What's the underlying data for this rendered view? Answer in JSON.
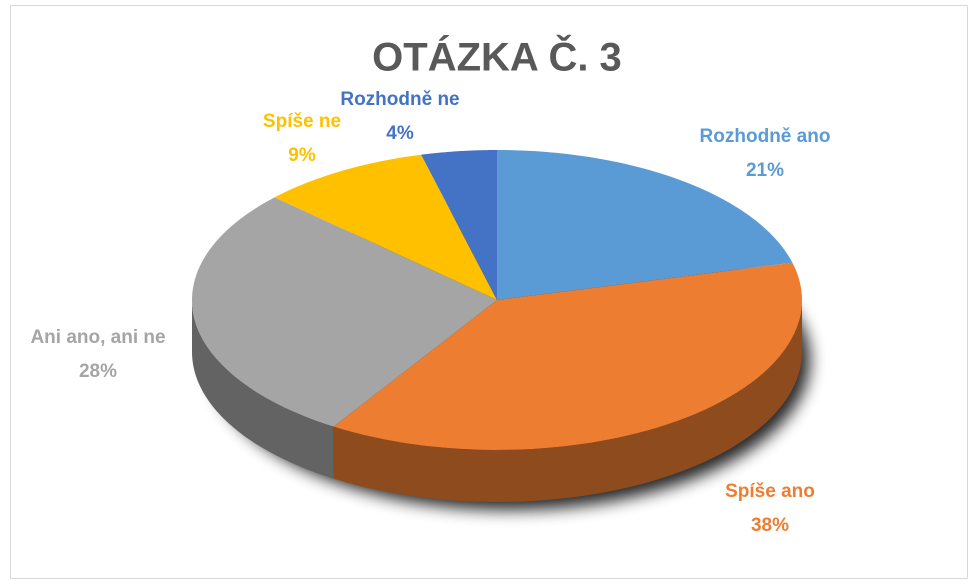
{
  "chart_data": {
    "type": "pie3d",
    "title": "OTÁZKA Č. 3",
    "categories": [
      "Rozhodně ano",
      "Spíše ano",
      "Ani ano, ani ne",
      "Spíše ne",
      "Rozhodně ne"
    ],
    "values": [
      21,
      38,
      28,
      9,
      4
    ],
    "value_labels": [
      "21%",
      "38%",
      "28%",
      "9%",
      "4%"
    ],
    "colors": [
      "#5b9bd5",
      "#ed7d31",
      "#a5a5a5",
      "#ffc000",
      "#4472c4"
    ]
  }
}
